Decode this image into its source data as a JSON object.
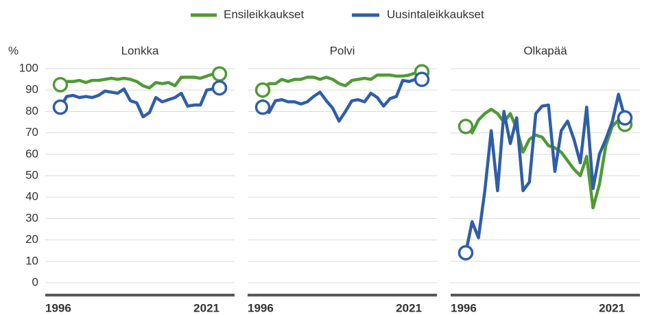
{
  "chart_data": [
    {
      "type": "line",
      "title": "Lonkka",
      "ylabel": "%",
      "x": [
        1996,
        1997,
        1998,
        1999,
        2000,
        2001,
        2002,
        2003,
        2004,
        2005,
        2006,
        2007,
        2008,
        2009,
        2010,
        2011,
        2012,
        2013,
        2014,
        2015,
        2016,
        2017,
        2018,
        2019,
        2020,
        2021
      ],
      "xlim": [
        1996,
        2021
      ],
      "xticks": [
        1996,
        2021
      ],
      "ylim": [
        0,
        100
      ],
      "yticks": [
        0,
        10,
        20,
        30,
        40,
        50,
        60,
        70,
        80,
        90,
        100
      ],
      "grid": true,
      "series": [
        {
          "name": "Ensileikkaukset",
          "color": "#4f9a35",
          "values": [
            92.5,
            94,
            94,
            94.5,
            93.5,
            94.5,
            94.5,
            95,
            95.5,
            95,
            95.5,
            95,
            94,
            92,
            91,
            93.5,
            93,
            93.5,
            92,
            96,
            96,
            96,
            95.5,
            96.5,
            97.5,
            97.5
          ]
        },
        {
          "name": "Uusintaleikkaukset",
          "color": "#2f5ea7",
          "values": [
            82,
            87,
            87.5,
            86.5,
            87,
            86.5,
            87.5,
            89.5,
            89,
            88.5,
            90.5,
            85,
            84,
            77.5,
            79.5,
            86.5,
            84.5,
            85.5,
            86.5,
            88.5,
            82.5,
            83,
            83,
            90,
            90.5,
            91
          ]
        }
      ]
    },
    {
      "type": "line",
      "title": "Polvi",
      "x": [
        1996,
        1997,
        1998,
        1999,
        2000,
        2001,
        2002,
        2003,
        2004,
        2005,
        2006,
        2007,
        2008,
        2009,
        2010,
        2011,
        2012,
        2013,
        2014,
        2015,
        2016,
        2017,
        2018,
        2019,
        2020,
        2021
      ],
      "xlim": [
        1996,
        2021
      ],
      "xticks": [
        1996,
        2021
      ],
      "ylim": [
        0,
        100
      ],
      "yticks": [
        0,
        10,
        20,
        30,
        40,
        50,
        60,
        70,
        80,
        90,
        100
      ],
      "grid": true,
      "series": [
        {
          "name": "Ensileikkaukset",
          "color": "#4f9a35",
          "values": [
            90,
            93,
            93,
            95,
            94,
            95,
            95,
            96,
            96,
            95,
            96,
            95,
            93,
            92,
            94.5,
            95,
            95.5,
            95,
            97,
            97,
            97,
            96.5,
            96.5,
            97,
            98,
            98.5
          ]
        },
        {
          "name": "Uusintaleikkaukset",
          "color": "#2f5ea7",
          "values": [
            82,
            79.5,
            85,
            85.5,
            84.5,
            84.5,
            83.5,
            84.5,
            87,
            89,
            85,
            81.5,
            75.5,
            80,
            85,
            85.5,
            84.5,
            88.5,
            86.5,
            82.5,
            86,
            87,
            94.5,
            94,
            95,
            95
          ]
        }
      ]
    },
    {
      "type": "line",
      "title": "Olkapää",
      "x": [
        1996,
        1997,
        1998,
        1999,
        2000,
        2001,
        2002,
        2003,
        2004,
        2005,
        2006,
        2007,
        2008,
        2009,
        2010,
        2011,
        2012,
        2013,
        2014,
        2015,
        2016,
        2017,
        2018,
        2019,
        2020,
        2021
      ],
      "xlim": [
        1996,
        2021
      ],
      "xticks": [
        1996,
        2021
      ],
      "ylim": [
        0,
        100
      ],
      "yticks": [
        0,
        10,
        20,
        30,
        40,
        50,
        60,
        70,
        80,
        90,
        100
      ],
      "grid": true,
      "series": [
        {
          "name": "Ensileikkaukset",
          "color": "#4f9a35",
          "values": [
            73,
            70,
            76,
            79,
            81,
            79,
            75,
            79,
            72,
            61,
            67,
            69,
            68,
            64,
            63,
            61,
            57,
            53,
            50,
            59,
            35,
            46,
            64,
            73,
            76,
            74
          ]
        },
        {
          "name": "Uusintaleikkaukset",
          "color": "#2f5ea7",
          "values": [
            14,
            28.5,
            21,
            43,
            71,
            43,
            80,
            65,
            77,
            43,
            47,
            79,
            82.5,
            83,
            52,
            71,
            75.5,
            67,
            56,
            82,
            44,
            60,
            67,
            75,
            88,
            77
          ]
        }
      ]
    }
  ]
}
